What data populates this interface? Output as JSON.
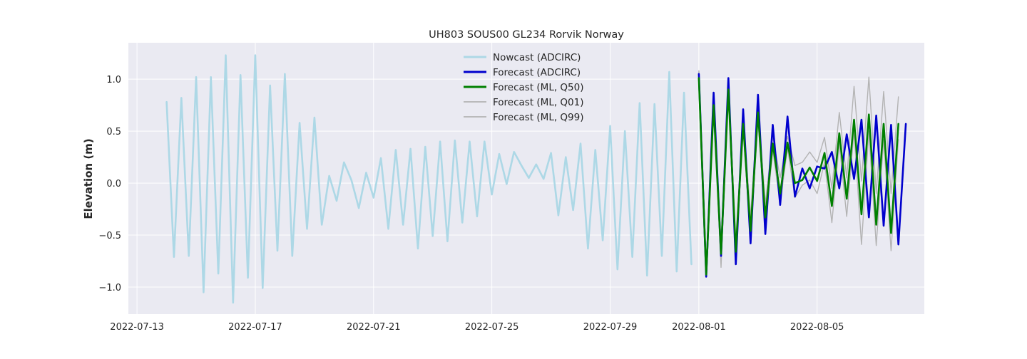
{
  "chart_data": {
    "type": "line",
    "title": "UH803 SOUS00 GL234 Rorvik Norway",
    "xlabel": "",
    "ylabel": "Elevation (m)",
    "x_axis_type": "date",
    "xlim": [
      "2022-07-12T17:00",
      "2022-08-08T15:00"
    ],
    "ylim": [
      -1.26,
      1.35
    ],
    "grid": true,
    "background": "#eaeaf2",
    "legend_position": "top-center",
    "x_ticks": [
      "2022-07-13",
      "2022-07-17",
      "2022-07-21",
      "2022-07-25",
      "2022-07-29",
      "2022-08-01",
      "2022-08-05"
    ],
    "y_ticks": [
      -1.0,
      -0.5,
      0.0,
      0.5,
      1.0
    ],
    "y_tick_labels": [
      "−1.0",
      "−0.5",
      "0.0",
      "0.5",
      "1.0"
    ],
    "series": [
      {
        "name": "Nowcast (ADCIRC)",
        "color": "#add8e6",
        "x_start": "2022-07-14T00:00",
        "x_step_hours": 6,
        "y": [
          0.78,
          -0.71,
          0.82,
          -0.7,
          1.02,
          -1.05,
          1.02,
          -0.87,
          1.23,
          -1.15,
          1.04,
          -0.91,
          1.23,
          -1.01,
          0.94,
          -0.65,
          1.05,
          -0.7,
          0.58,
          -0.44,
          0.63,
          -0.4,
          0.07,
          -0.17,
          0.2,
          0.03,
          -0.24,
          0.1,
          -0.14,
          0.24,
          -0.44,
          0.32,
          -0.4,
          0.33,
          -0.63,
          0.35,
          -0.51,
          0.4,
          -0.56,
          0.41,
          -0.38,
          0.4,
          -0.32,
          0.4,
          -0.11,
          0.28,
          -0.01,
          0.3,
          0.17,
          0.05,
          0.18,
          0.04,
          0.29,
          -0.31,
          0.25,
          -0.26,
          0.38,
          -0.63,
          0.32,
          -0.55,
          0.55,
          -0.83,
          0.5,
          -0.71,
          0.77,
          -0.89,
          0.76,
          -0.7,
          1.07,
          -0.85,
          0.87,
          -0.78
        ]
      },
      {
        "name": "Forecast (ADCIRC)",
        "color": "#0000cd",
        "x_start": "2022-08-01T00:00",
        "x_step_hours": 6,
        "y": [
          1.05,
          -0.9,
          0.87,
          -0.7,
          1.01,
          -0.78,
          0.71,
          -0.58,
          0.85,
          -0.49,
          0.56,
          -0.21,
          0.64,
          -0.13,
          0.14,
          -0.05,
          0.16,
          0.14,
          0.3,
          -0.05,
          0.47,
          0.04,
          0.61,
          -0.33,
          0.65,
          -0.41,
          0.56,
          -0.59,
          0.57
        ]
      },
      {
        "name": "Forecast (ML, Q50)",
        "color": "#008000",
        "x_start": "2022-08-01T00:00",
        "x_step_hours": 6,
        "y": [
          1.01,
          -0.88,
          0.75,
          -0.68,
          0.9,
          -0.66,
          0.57,
          -0.46,
          0.68,
          -0.33,
          0.38,
          -0.1,
          0.39,
          0.0,
          0.03,
          0.15,
          0.02,
          0.29,
          -0.22,
          0.48,
          -0.15,
          0.61,
          -0.3,
          0.66,
          -0.4,
          0.57,
          -0.48,
          0.57
        ]
      },
      {
        "name": "Forecast (ML, Q01)",
        "color": "#b3b3b3",
        "x_start": "2022-08-01T00:00",
        "x_step_hours": 6,
        "y": [
          1.0,
          -0.9,
          0.7,
          -0.81,
          0.87,
          -0.72,
          0.52,
          -0.56,
          0.62,
          -0.43,
          0.32,
          -0.2,
          0.34,
          -0.14,
          -0.02,
          0.03,
          -0.1,
          0.2,
          -0.38,
          0.38,
          -0.32,
          0.5,
          -0.59,
          0.5,
          -0.6,
          0.42,
          -0.65,
          0.42
        ]
      },
      {
        "name": "Forecast (ML, Q99)",
        "color": "#b3b3b3",
        "x_start": "2022-08-01T00:00",
        "x_step_hours": 6,
        "y": [
          1.08,
          -0.8,
          0.83,
          -0.55,
          0.95,
          -0.55,
          0.65,
          -0.32,
          0.75,
          -0.2,
          0.45,
          0.05,
          0.45,
          0.17,
          0.2,
          0.3,
          0.2,
          0.44,
          -0.05,
          0.68,
          0.05,
          0.93,
          0.02,
          1.02,
          -0.1,
          0.88,
          -0.1,
          0.83
        ]
      }
    ]
  }
}
